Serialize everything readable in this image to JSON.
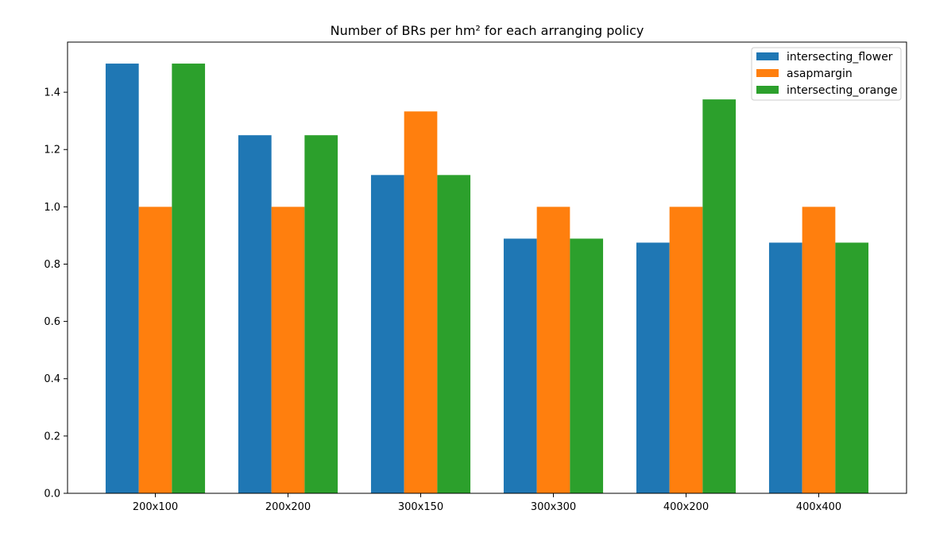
{
  "chart_data": {
    "type": "bar",
    "title": "Number of BRs per hm² for each arranging policy",
    "xlabel": "",
    "ylabel": "",
    "categories": [
      "200x100",
      "200x200",
      "300x150",
      "300x300",
      "400x200",
      "400x400"
    ],
    "series": [
      {
        "name": "intersecting_flower",
        "color": "#1f77b4",
        "values": [
          1.5,
          1.25,
          1.111,
          0.889,
          0.875,
          0.875
        ]
      },
      {
        "name": "asapmargin",
        "color": "#ff7f0e",
        "values": [
          1.0,
          1.0,
          1.333,
          1.0,
          1.0,
          1.0
        ]
      },
      {
        "name": "intersecting_orange",
        "color": "#2ca02c",
        "values": [
          1.5,
          1.25,
          1.111,
          0.889,
          1.375,
          0.875
        ]
      }
    ],
    "ylim": [
      0,
      1.575
    ],
    "yticks": [
      "0.0",
      "0.2",
      "0.4",
      "0.6",
      "0.8",
      "1.0",
      "1.2",
      "1.4"
    ],
    "grid": false,
    "legend_position": "top-right"
  }
}
